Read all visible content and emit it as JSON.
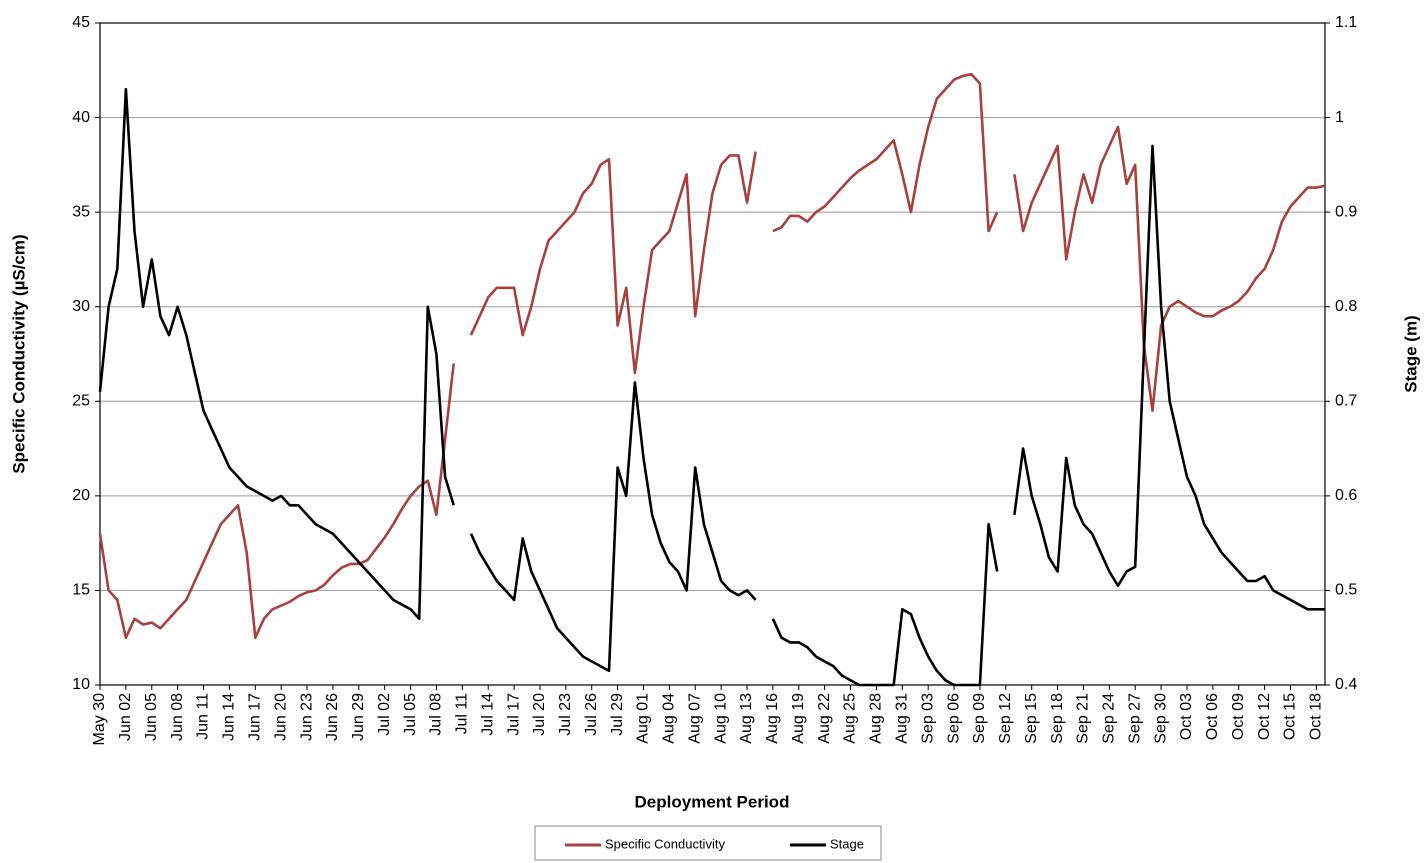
{
  "chart_data": {
    "type": "line",
    "x_label": "Deployment Period",
    "y_label": "Specific Conductivity (µS/cm)",
    "y2_label": "Stage (m)",
    "x": [
      "May 30",
      "May 31",
      "Jun 01",
      "Jun 02",
      "Jun 03",
      "Jun 04",
      "Jun 05",
      "Jun 06",
      "Jun 07",
      "Jun 08",
      "Jun 09",
      "Jun 10",
      "Jun 11",
      "Jun 12",
      "Jun 13",
      "Jun 14",
      "Jun 15",
      "Jun 16",
      "Jun 17",
      "Jun 18",
      "Jun 19",
      "Jun 20",
      "Jun 21",
      "Jun 22",
      "Jun 23",
      "Jun 24",
      "Jun 25",
      "Jun 26",
      "Jun 27",
      "Jun 28",
      "Jun 29",
      "Jun 30",
      "Jul 01",
      "Jul 02",
      "Jul 03",
      "Jul 04",
      "Jul 05",
      "Jul 06",
      "Jul 07",
      "Jul 08",
      "Jul 09",
      "Jul 10",
      "Jul 11",
      "Jul 12",
      "Jul 13",
      "Jul 14",
      "Jul 15",
      "Jul 16",
      "Jul 17",
      "Jul 18",
      "Jul 19",
      "Jul 20",
      "Jul 21",
      "Jul 22",
      "Jul 23",
      "Jul 24",
      "Jul 25",
      "Jul 26",
      "Jul 27",
      "Jul 28",
      "Jul 29",
      "Jul 30",
      "Jul 31",
      "Aug 01",
      "Aug 02",
      "Aug 03",
      "Aug 04",
      "Aug 05",
      "Aug 06",
      "Aug 07",
      "Aug 08",
      "Aug 09",
      "Aug 10",
      "Aug 11",
      "Aug 12",
      "Aug 13",
      "Aug 14",
      "Aug 15",
      "Aug 16",
      "Aug 17",
      "Aug 18",
      "Aug 19",
      "Aug 20",
      "Aug 21",
      "Aug 22",
      "Aug 23",
      "Aug 24",
      "Aug 25",
      "Aug 26",
      "Aug 27",
      "Aug 28",
      "Aug 29",
      "Aug 30",
      "Aug 31",
      "Sep 01",
      "Sep 02",
      "Sep 03",
      "Sep 04",
      "Sep 05",
      "Sep 06",
      "Sep 07",
      "Sep 08",
      "Sep 09",
      "Sep 10",
      "Sep 11",
      "Sep 12",
      "Sep 13",
      "Sep 14",
      "Sep 15",
      "Sep 16",
      "Sep 17",
      "Sep 18",
      "Sep 19",
      "Sep 20",
      "Sep 21",
      "Sep 22",
      "Sep 23",
      "Sep 24",
      "Sep 25",
      "Sep 26",
      "Sep 27",
      "Sep 28",
      "Sep 29",
      "Sep 30",
      "Oct 01",
      "Oct 02",
      "Oct 03",
      "Oct 04",
      "Oct 05",
      "Oct 06",
      "Oct 07",
      "Oct 08",
      "Oct 09",
      "Oct 10",
      "Oct 11",
      "Oct 12",
      "Oct 13",
      "Oct 14",
      "Oct 15",
      "Oct 16",
      "Oct 17",
      "Oct 18",
      "Oct 19"
    ],
    "xticks": [
      "May 30",
      "Jun 02",
      "Jun 05",
      "Jun 08",
      "Jun 11",
      "Jun 14",
      "Jun 17",
      "Jun 20",
      "Jun 23",
      "Jun 26",
      "Jun 29",
      "Jul 02",
      "Jul 05",
      "Jul 08",
      "Jul 11",
      "Jul 14",
      "Jul 17",
      "Jul 20",
      "Jul 23",
      "Jul 26",
      "Jul 29",
      "Aug 01",
      "Aug 04",
      "Aug 07",
      "Aug 10",
      "Aug 13",
      "Aug 16",
      "Aug 19",
      "Aug 22",
      "Aug 25",
      "Aug 28",
      "Aug 31",
      "Sep 03",
      "Sep 06",
      "Sep 09",
      "Sep 12",
      "Sep 15",
      "Sep 18",
      "Sep 21",
      "Sep 24",
      "Sep 27",
      "Sep 30",
      "Oct 03",
      "Oct 06",
      "Oct 09",
      "Oct 12",
      "Oct 15",
      "Oct 18"
    ],
    "ylim": [
      10,
      45
    ],
    "yticks": [
      10,
      15,
      20,
      25,
      30,
      35,
      40,
      45
    ],
    "y2lim": [
      0.4,
      1.1
    ],
    "y2ticks": [
      0.4,
      0.5,
      0.6,
      0.7,
      0.8,
      0.9,
      1,
      1.1
    ],
    "grid": true,
    "legend": "bottom",
    "series": [
      {
        "name": "Specific Conductivity",
        "color": "#a8413d",
        "values": [
          18,
          15,
          14.5,
          12.5,
          13.5,
          13.2,
          13.3,
          13,
          13.5,
          14,
          14.5,
          15.5,
          16.5,
          17.5,
          18.5,
          19,
          19.5,
          17,
          12.5,
          13.5,
          14,
          14.2,
          14.4,
          14.7,
          14.9,
          15,
          15.3,
          15.8,
          16.2,
          16.4,
          16.4,
          16.6,
          17.2,
          17.8,
          18.5,
          19.3,
          20,
          20.5,
          20.8,
          19,
          23,
          27,
          null,
          28.5,
          29.5,
          30.5,
          31,
          31,
          31,
          28.5,
          30,
          32,
          33.5,
          34,
          34.5,
          35,
          36,
          36.5,
          37.5,
          37.8,
          29,
          31,
          26.5,
          30,
          33,
          33.5,
          34,
          35.5,
          37,
          29.5,
          33,
          36,
          37.5,
          38,
          38,
          35.5,
          38.2,
          null,
          34,
          34.2,
          34.8,
          34.8,
          34.5,
          35,
          35.3,
          35.8,
          36.3,
          36.8,
          37.2,
          37.5,
          37.8,
          38.3,
          38.8,
          37,
          35,
          37.5,
          39.5,
          41,
          41.5,
          42,
          42.2,
          42.3,
          41.8,
          34,
          35,
          null,
          37,
          34,
          35.5,
          36.5,
          37.5,
          38.5,
          32.5,
          35,
          37,
          35.5,
          37.5,
          38.5,
          39.5,
          36.5,
          37.5,
          28,
          24.5,
          29,
          30,
          30.3,
          30,
          29.7,
          29.5,
          29.5,
          29.8,
          30,
          30.3,
          30.8,
          31.5,
          32,
          33,
          34.5,
          35.3,
          35.8,
          36.3,
          36.3,
          36.4
        ]
      },
      {
        "name": "Stage",
        "color": "#000000",
        "axis": "y2",
        "values": [
          0.71,
          0.8,
          0.84,
          1.03,
          0.88,
          0.8,
          0.85,
          0.79,
          0.77,
          0.8,
          0.77,
          0.73,
          0.69,
          0.67,
          0.65,
          0.63,
          0.62,
          0.61,
          0.605,
          0.6,
          0.595,
          0.6,
          0.59,
          0.59,
          0.58,
          0.57,
          0.565,
          0.56,
          0.55,
          0.54,
          0.53,
          0.52,
          0.51,
          0.5,
          0.49,
          0.485,
          0.48,
          0.47,
          0.8,
          0.75,
          0.62,
          0.59,
          null,
          0.56,
          0.54,
          0.525,
          0.51,
          0.5,
          0.49,
          0.555,
          0.52,
          0.5,
          0.48,
          0.46,
          0.45,
          0.44,
          0.43,
          0.425,
          0.42,
          0.415,
          0.63,
          0.6,
          0.72,
          0.64,
          0.58,
          0.55,
          0.53,
          0.52,
          0.5,
          0.63,
          0.57,
          0.54,
          0.51,
          0.5,
          0.495,
          0.5,
          0.49,
          null,
          0.47,
          0.45,
          0.445,
          0.445,
          0.44,
          0.43,
          0.425,
          0.42,
          0.41,
          0.405,
          0.4,
          0.4,
          0.4,
          0.4,
          0.4,
          0.48,
          0.475,
          0.45,
          0.43,
          0.415,
          0.405,
          0.4,
          0.4,
          0.4,
          0.4,
          0.57,
          0.52,
          null,
          0.58,
          0.65,
          0.6,
          0.57,
          0.535,
          0.52,
          0.64,
          0.59,
          0.57,
          0.56,
          0.54,
          0.52,
          0.505,
          0.52,
          0.525,
          0.75,
          0.97,
          0.8,
          0.7,
          0.66,
          0.62,
          0.6,
          0.57,
          0.555,
          0.54,
          0.53,
          0.52,
          0.51,
          0.51,
          0.515,
          0.5,
          0.495,
          0.49,
          0.485,
          0.48,
          0.48,
          0.48
        ]
      }
    ]
  }
}
